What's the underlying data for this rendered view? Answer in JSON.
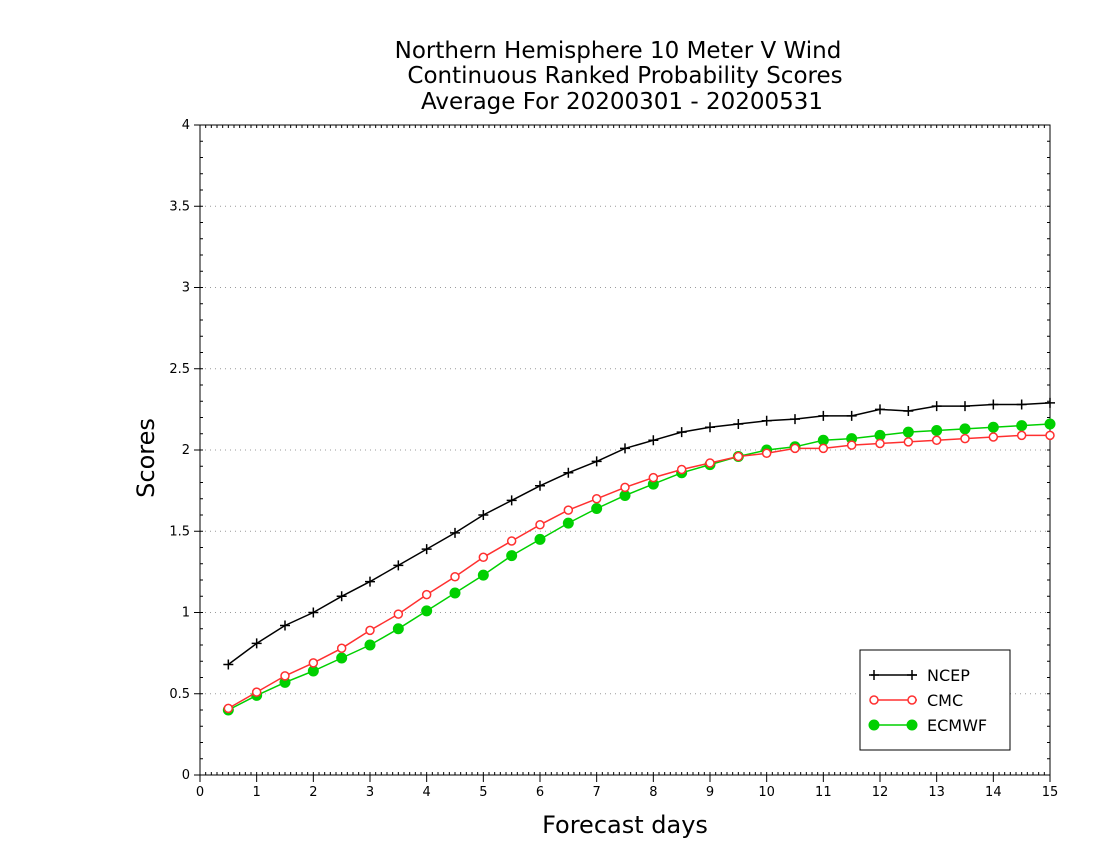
{
  "chart_data": {
    "type": "line",
    "title_lines": [
      "Northern Hemisphere 10 Meter V Wind",
      "Continuous Ranked Probability Scores",
      "Average For 20200301 - 20200531"
    ],
    "xlabel": "Forecast days",
    "ylabel": "Scores",
    "xlim": [
      0,
      15
    ],
    "ylim": [
      0,
      4
    ],
    "x_ticks": [
      "0",
      "1",
      "2",
      "3",
      "4",
      "5",
      "6",
      "7",
      "8",
      "9",
      "10",
      "11",
      "12",
      "13",
      "14",
      "15"
    ],
    "y_ticks": [
      "0",
      "0.5",
      "1",
      "1.5",
      "2",
      "2.5",
      "3",
      "3.5",
      "4"
    ],
    "grid": "horizontal dotted",
    "legend_position": "bottom-right",
    "x": [
      0.5,
      1,
      1.5,
      2,
      2.5,
      3,
      3.5,
      4,
      4.5,
      5,
      5.5,
      6,
      6.5,
      7,
      7.5,
      8,
      8.5,
      9,
      9.5,
      10,
      10.5,
      11,
      11.5,
      12,
      12.5,
      13,
      13.5,
      14,
      14.5,
      15
    ],
    "series": [
      {
        "name": "NCEP",
        "color": "#000000",
        "marker": "plus",
        "values": [
          0.68,
          0.81,
          0.92,
          1.0,
          1.1,
          1.19,
          1.29,
          1.39,
          1.49,
          1.6,
          1.69,
          1.78,
          1.86,
          1.93,
          2.01,
          2.06,
          2.11,
          2.14,
          2.16,
          2.18,
          2.19,
          2.21,
          2.21,
          2.25,
          2.24,
          2.27,
          2.27,
          2.28,
          2.28,
          2.29
        ]
      },
      {
        "name": "CMC",
        "color": "#ff3030",
        "marker": "open-circle",
        "values": [
          0.41,
          0.51,
          0.61,
          0.69,
          0.78,
          0.89,
          0.99,
          1.11,
          1.22,
          1.34,
          1.44,
          1.54,
          1.63,
          1.7,
          1.77,
          1.83,
          1.88,
          1.92,
          1.96,
          1.98,
          2.01,
          2.01,
          2.03,
          2.04,
          2.05,
          2.06,
          2.07,
          2.08,
          2.09,
          2.09
        ]
      },
      {
        "name": "ECMWF",
        "color": "#00d000",
        "marker": "filled-circle",
        "values": [
          0.4,
          0.49,
          0.57,
          0.64,
          0.72,
          0.8,
          0.9,
          1.01,
          1.12,
          1.23,
          1.35,
          1.45,
          1.55,
          1.64,
          1.72,
          1.79,
          1.86,
          1.91,
          1.96,
          2.0,
          2.02,
          2.06,
          2.07,
          2.09,
          2.11,
          2.12,
          2.13,
          2.14,
          2.15,
          2.16
        ]
      }
    ]
  }
}
